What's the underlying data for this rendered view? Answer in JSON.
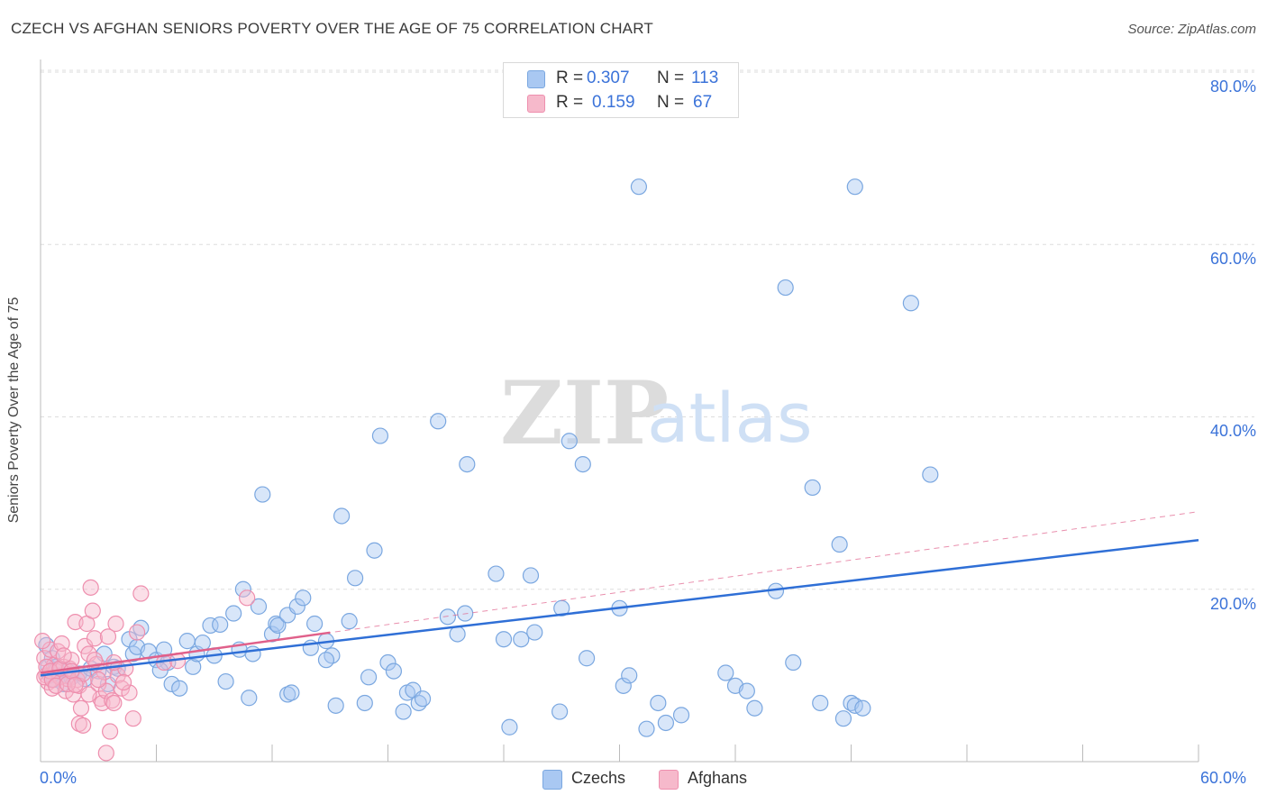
{
  "title": "CZECH VS AFGHAN SENIORS POVERTY OVER THE AGE OF 75 CORRELATION CHART",
  "source": "Source: ZipAtlas.com",
  "watermark": {
    "zip": "ZIP",
    "atlas": "atlas"
  },
  "colors": {
    "czech_fill": "#a9c8f2",
    "czech_stroke": "#7aa7e0",
    "czech_line": "#2f6fd6",
    "afghan_fill": "#f6b9cb",
    "afghan_stroke": "#ee8fae",
    "afghan_line": "#e0608a",
    "tick_text": "#3b73d9",
    "grid": "#dddddd"
  },
  "legend": {
    "rows": [
      {
        "r_label": "R =",
        "r_value": "0.307",
        "n_label": "N =",
        "n_value": "113"
      },
      {
        "r_label": "R =",
        "r_value": "0.159",
        "n_label": "N =",
        "n_value": "67"
      }
    ]
  },
  "bottom_legend": {
    "czechs": "Czechs",
    "afghans": "Afghans"
  },
  "chart_data": {
    "type": "scatter",
    "xlabel": "",
    "ylabel": "Seniors Poverty Over the Age of 75",
    "xlim": [
      0,
      60
    ],
    "ylim": [
      0,
      80
    ],
    "x_tick_labels": [
      "0.0%",
      "60.0%"
    ],
    "y_tick_labels": [
      "20.0%",
      "40.0%",
      "60.0%",
      "80.0%"
    ],
    "y_ticks": [
      20,
      40,
      60,
      80
    ],
    "grid": true,
    "legend_position": "top-center",
    "series": [
      {
        "name": "Czechs",
        "trend": {
          "x": [
            0,
            60
          ],
          "y": [
            10.0,
            25.7
          ],
          "style": "solid"
        },
        "points": [
          [
            0.3,
            13.5
          ],
          [
            0.4,
            11
          ],
          [
            0.5,
            10
          ],
          [
            0.6,
            12
          ],
          [
            0.7,
            9.5
          ],
          [
            0.8,
            11
          ],
          [
            1,
            10
          ],
          [
            1.2,
            9
          ],
          [
            1.4,
            10.5
          ],
          [
            1.6,
            9.8
          ],
          [
            2,
            10.2
          ],
          [
            2.3,
            9.6
          ],
          [
            2.6,
            10.8
          ],
          [
            3,
            10.5
          ],
          [
            3.3,
            12.5
          ],
          [
            3.5,
            9
          ],
          [
            3.8,
            11
          ],
          [
            4,
            10.8
          ],
          [
            4.6,
            14.2
          ],
          [
            4.8,
            12.5
          ],
          [
            5,
            13.3
          ],
          [
            5.2,
            15.5
          ],
          [
            5.6,
            12.8
          ],
          [
            6,
            11.8
          ],
          [
            6.6,
            11.5
          ],
          [
            6.4,
            13
          ],
          [
            6.8,
            9
          ],
          [
            7.2,
            8.5
          ],
          [
            7.6,
            14
          ],
          [
            7.9,
            11
          ],
          [
            8.1,
            12.5
          ],
          [
            8.4,
            13.8
          ],
          [
            8.8,
            15.8
          ],
          [
            9,
            12.3
          ],
          [
            9.3,
            15.9
          ],
          [
            9.6,
            9.3
          ],
          [
            10,
            17.2
          ],
          [
            10.3,
            13
          ],
          [
            10.5,
            20
          ],
          [
            10.8,
            7.4
          ],
          [
            11,
            12.5
          ],
          [
            11.3,
            18
          ],
          [
            11.5,
            31
          ],
          [
            12,
            14.8
          ],
          [
            12.2,
            16
          ],
          [
            12.3,
            15.8
          ],
          [
            12.8,
            17
          ],
          [
            12.8,
            7.8
          ],
          [
            13,
            8
          ],
          [
            13.3,
            18
          ],
          [
            13.6,
            19
          ],
          [
            14,
            13.2
          ],
          [
            14.2,
            16
          ],
          [
            14.8,
            14
          ],
          [
            15.1,
            12.3
          ],
          [
            15.3,
            6.5
          ],
          [
            15.6,
            28.5
          ],
          [
            16,
            16.3
          ],
          [
            16.3,
            21.3
          ],
          [
            16.8,
            6.8
          ],
          [
            17,
            9.8
          ],
          [
            17.3,
            24.5
          ],
          [
            17.6,
            37.8
          ],
          [
            18,
            11.5
          ],
          [
            18.3,
            10.5
          ],
          [
            18.8,
            5.8
          ],
          [
            19,
            8
          ],
          [
            19.3,
            8.3
          ],
          [
            19.6,
            6.8
          ],
          [
            19.8,
            7.3
          ],
          [
            20.6,
            39.5
          ],
          [
            21.1,
            16.8
          ],
          [
            21.6,
            14.8
          ],
          [
            22,
            17.2
          ],
          [
            22.1,
            34.5
          ],
          [
            23.6,
            21.8
          ],
          [
            24,
            14.2
          ],
          [
            24.3,
            4
          ],
          [
            24.9,
            14.2
          ],
          [
            25.4,
            21.6
          ],
          [
            25.6,
            15
          ],
          [
            26.9,
            5.8
          ],
          [
            27,
            17.8
          ],
          [
            27.4,
            37.2
          ],
          [
            28.1,
            34.5
          ],
          [
            28.3,
            12
          ],
          [
            30,
            17.8
          ],
          [
            30.2,
            8.8
          ],
          [
            30.5,
            10
          ],
          [
            31,
            66.7
          ],
          [
            31.4,
            3.8
          ],
          [
            32,
            6.8
          ],
          [
            32.4,
            4.5
          ],
          [
            33.2,
            5.4
          ],
          [
            35.5,
            10.3
          ],
          [
            36,
            8.8
          ],
          [
            36.6,
            8.2
          ],
          [
            37,
            6.2
          ],
          [
            38.1,
            19.8
          ],
          [
            38.6,
            55
          ],
          [
            39,
            11.5
          ],
          [
            40,
            31.8
          ],
          [
            40.4,
            6.8
          ],
          [
            41.4,
            25.2
          ],
          [
            41.6,
            5
          ],
          [
            42.2,
            66.7
          ],
          [
            42,
            6.8
          ],
          [
            42.2,
            6.5
          ],
          [
            42.6,
            6.2
          ],
          [
            45.1,
            53.2
          ],
          [
            46.1,
            33.3
          ],
          [
            14.8,
            11.8
          ],
          [
            6.2,
            10.6
          ]
        ]
      },
      {
        "name": "Afghans",
        "trend": {
          "x": [
            0,
            60
          ],
          "y": [
            10.3,
            29.0
          ],
          "style": "dashed"
        },
        "points": [
          [
            0.2,
            12
          ],
          [
            0.3,
            10
          ],
          [
            0.4,
            9.2
          ],
          [
            0.5,
            13
          ],
          [
            0.6,
            8.5
          ],
          [
            0.7,
            11.2
          ],
          [
            0.8,
            10.5
          ],
          [
            0.9,
            12.8
          ],
          [
            1,
            9.8
          ],
          [
            1.1,
            13.7
          ],
          [
            1.2,
            11
          ],
          [
            1.3,
            8.2
          ],
          [
            1.4,
            9.6
          ],
          [
            1.5,
            10.8
          ],
          [
            1.6,
            11.8
          ],
          [
            1.7,
            7.8
          ],
          [
            1.8,
            16.2
          ],
          [
            1.9,
            9.5
          ],
          [
            2,
            8.8
          ],
          [
            2.1,
            6.2
          ],
          [
            2.2,
            10.2
          ],
          [
            2.3,
            13.4
          ],
          [
            2.4,
            16
          ],
          [
            2.5,
            12.5
          ],
          [
            2.6,
            20.2
          ],
          [
            2.7,
            17.5
          ],
          [
            2.8,
            14.3
          ],
          [
            2.9,
            11.3
          ],
          [
            3,
            9
          ],
          [
            3.1,
            7.3
          ],
          [
            3.2,
            6.8
          ],
          [
            3.3,
            10.4
          ],
          [
            3.4,
            8.2
          ],
          [
            3.5,
            14.5
          ],
          [
            3.6,
            3.5
          ],
          [
            3.7,
            7.1
          ],
          [
            3.8,
            6.8
          ],
          [
            3.9,
            16
          ],
          [
            4,
            10
          ],
          [
            4.2,
            8.5
          ],
          [
            4.4,
            10.8
          ],
          [
            4.6,
            8
          ],
          [
            4.8,
            5
          ],
          [
            5,
            15
          ],
          [
            5.2,
            19.5
          ],
          [
            0.1,
            14
          ],
          [
            0.2,
            9.8
          ],
          [
            0.3,
            11
          ],
          [
            0.5,
            10.5
          ],
          [
            0.6,
            9.5
          ],
          [
            0.8,
            8.8
          ],
          [
            1,
            10.8
          ],
          [
            1.2,
            12.3
          ],
          [
            1.4,
            9
          ],
          [
            1.6,
            10.5
          ],
          [
            1.8,
            8.9
          ],
          [
            2,
            4.4
          ],
          [
            2.2,
            4.2
          ],
          [
            2.5,
            7.8
          ],
          [
            2.8,
            11.8
          ],
          [
            3,
            9.5
          ],
          [
            3.4,
            1
          ],
          [
            3.8,
            11.5
          ],
          [
            4.3,
            9.2
          ],
          [
            10.7,
            19
          ],
          [
            6.4,
            11.5
          ],
          [
            7.1,
            11.7
          ]
        ]
      }
    ]
  }
}
